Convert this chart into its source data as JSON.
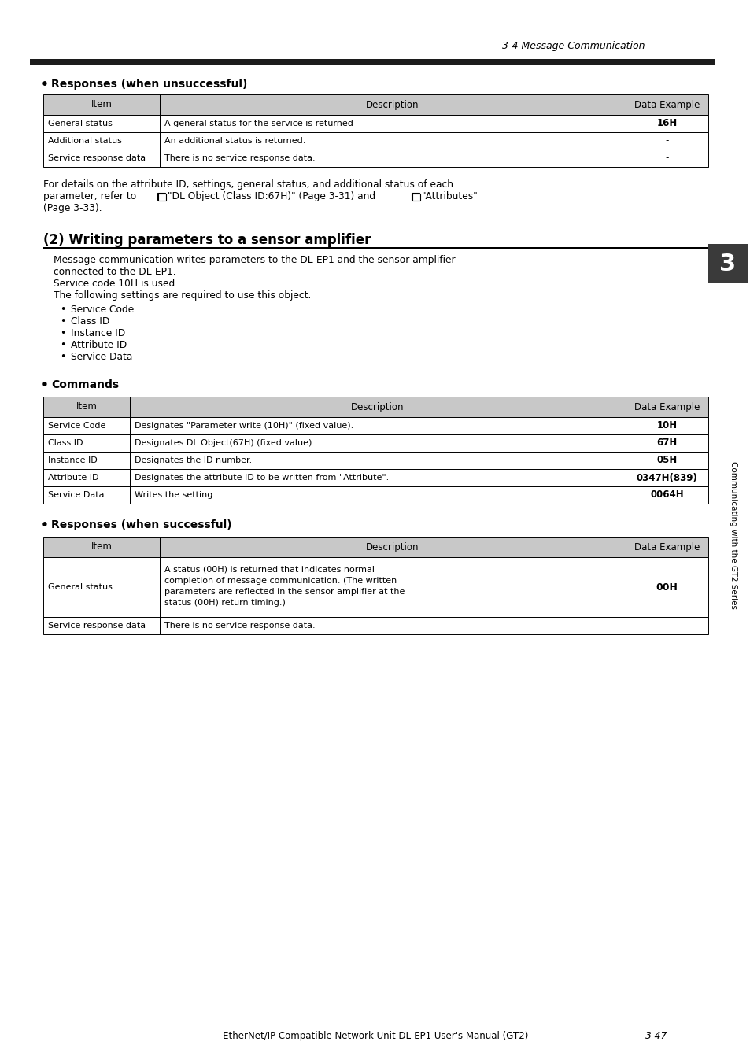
{
  "page_header": "3-4 Message Communication",
  "section1_bullet": "Responses (when unsuccessful)",
  "table1_header": [
    "Item",
    "Description",
    "Data Example"
  ],
  "table1_rows": [
    [
      "General status",
      "A general status for the service is returned",
      "16H"
    ],
    [
      "Additional status",
      "An additional status is returned.",
      "-"
    ],
    [
      "Service response data",
      "There is no service response data.",
      "-"
    ]
  ],
  "para1_line1": "For details on the attribute ID, settings, general status, and additional status of each",
  "para1_line2_pre": "parameter, refer to ",
  "para1_line2_icon1": true,
  "para1_line2_mid": " \"DL Object (Class ID:67H)\" (Page 3-31) and ",
  "para1_line2_icon2": true,
  "para1_line2_post": " \"Attributes\"",
  "para1_line3": "(Page 3-33).",
  "section2_title": "(2) Writing parameters to a sensor amplifier",
  "section2_body_lines": [
    "Message communication writes parameters to the DL-EP1 and the sensor amplifier",
    "connected to the DL-EP1.",
    "Service code 10H is used.",
    "The following settings are required to use this object."
  ],
  "section2_bullets": [
    "Service Code",
    "Class ID",
    "Instance ID",
    "Attribute ID",
    "Service Data"
  ],
  "section3_bullet": "Commands",
  "table2_header": [
    "Item",
    "Description",
    "Data Example"
  ],
  "table2_rows": [
    [
      "Service Code",
      "Designates \"Parameter write (10H)\" (fixed value).",
      "10H"
    ],
    [
      "Class ID",
      "Designates DL Object(67H) (fixed value).",
      "67H"
    ],
    [
      "Instance ID",
      "Designates the ID number.",
      "05H"
    ],
    [
      "Attribute ID",
      "Designates the attribute ID to be written from \"Attribute\".",
      "0347H(839)"
    ],
    [
      "Service Data",
      "Writes the setting.",
      "0064H"
    ]
  ],
  "section4_bullet": "Responses (when successful)",
  "table3_header": [
    "Item",
    "Description",
    "Data Example"
  ],
  "table3_rows": [
    [
      "General status",
      "A status (00H) is returned that indicates normal\ncompletion of message communication. (The written\nparameters are reflected in the sensor amplifier at the\nstatus (00H) return timing.)",
      "00H"
    ],
    [
      "Service response data",
      "There is no service response data.",
      "-"
    ]
  ],
  "page_footer": "- EtherNet/IP Compatible Network Unit DL-EP1 User's Manual (GT2) -",
  "page_number": "3-47",
  "side_tab_text": "Communicating with the GT2 Series",
  "tab_number": "3",
  "bg_color": "#ffffff",
  "header_bg": "#c8c8c8",
  "tab_box_color": "#3a3a3a"
}
